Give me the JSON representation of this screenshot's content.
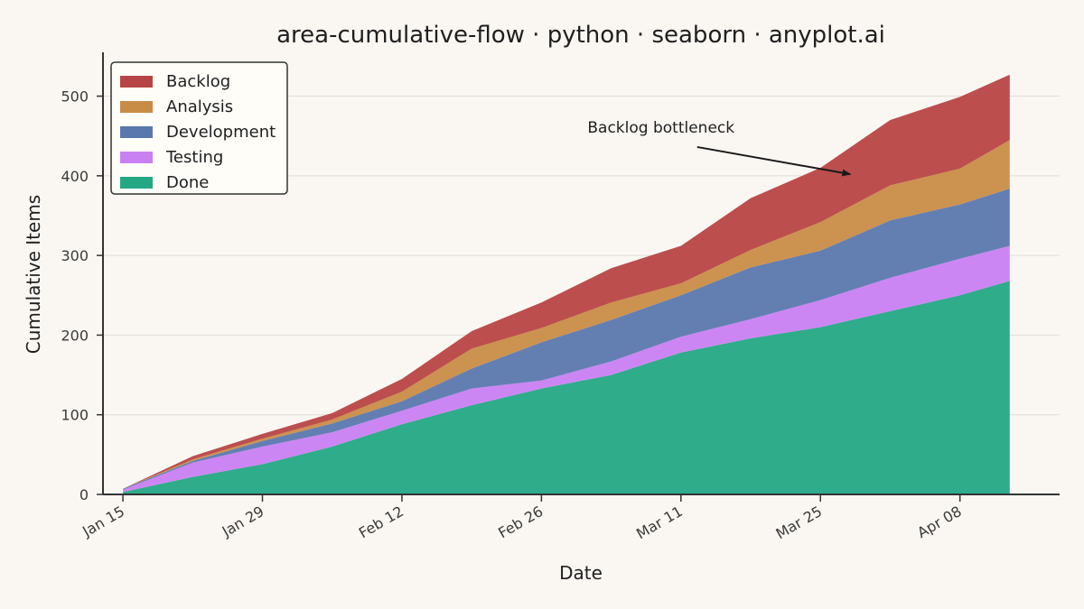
{
  "chart_data": {
    "type": "area",
    "stacked": true,
    "title": "area-cumulative-flow · python · seaborn · anyplot.ai",
    "xlabel": "Date",
    "ylabel": "Cumulative Items",
    "x_range": [
      "2024-01-13",
      "2024-04-18"
    ],
    "ylim": [
      0,
      555
    ],
    "y_ticks": [
      0,
      100,
      200,
      300,
      400,
      500
    ],
    "x_ticks": [
      {
        "date": "2024-01-15",
        "label": "Jan 15"
      },
      {
        "date": "2024-01-29",
        "label": "Jan 29"
      },
      {
        "date": "2024-02-12",
        "label": "Feb 12"
      },
      {
        "date": "2024-02-26",
        "label": "Feb 26"
      },
      {
        "date": "2024-03-11",
        "label": "Mar 11"
      },
      {
        "date": "2024-03-25",
        "label": "Mar 25"
      },
      {
        "date": "2024-04-08",
        "label": "Apr 08"
      }
    ],
    "grid": "horizontal",
    "legend_position": "top-left",
    "dates": [
      "2024-01-15",
      "2024-01-22",
      "2024-01-29",
      "2024-02-05",
      "2024-02-12",
      "2024-02-19",
      "2024-02-26",
      "2024-03-04",
      "2024-03-11",
      "2024-03-18",
      "2024-03-25",
      "2024-04-01",
      "2024-04-08",
      "2024-04-13"
    ],
    "series": [
      {
        "name": "Done",
        "color": "#24A884",
        "values": [
          3,
          22,
          38,
          60,
          88,
          112,
          133,
          150,
          178,
          196,
          210,
          230,
          250,
          268
        ]
      },
      {
        "name": "Testing",
        "color": "#C980F2",
        "values": [
          3,
          18,
          22,
          18,
          17,
          21,
          10,
          17,
          20,
          24,
          34,
          42,
          46,
          44
        ]
      },
      {
        "name": "Development",
        "color": "#5B78AE",
        "values": [
          1,
          2,
          7,
          11,
          12,
          25,
          48,
          52,
          52,
          65,
          62,
          72,
          68,
          72
        ]
      },
      {
        "name": "Analysis",
        "color": "#C98C47",
        "values": [
          0,
          2,
          3,
          5,
          12,
          25,
          18,
          22,
          15,
          22,
          36,
          44,
          45,
          61
        ]
      },
      {
        "name": "Backlog",
        "color": "#B84545",
        "values": [
          0,
          4,
          6,
          8,
          16,
          22,
          32,
          43,
          47,
          65,
          68,
          82,
          90,
          82
        ]
      }
    ],
    "annotations": [
      {
        "text": "Backlog bottleneck",
        "point_date": "2024-03-28",
        "point_value": 402,
        "text_date": "2024-03-09",
        "text_value": 452
      }
    ]
  }
}
